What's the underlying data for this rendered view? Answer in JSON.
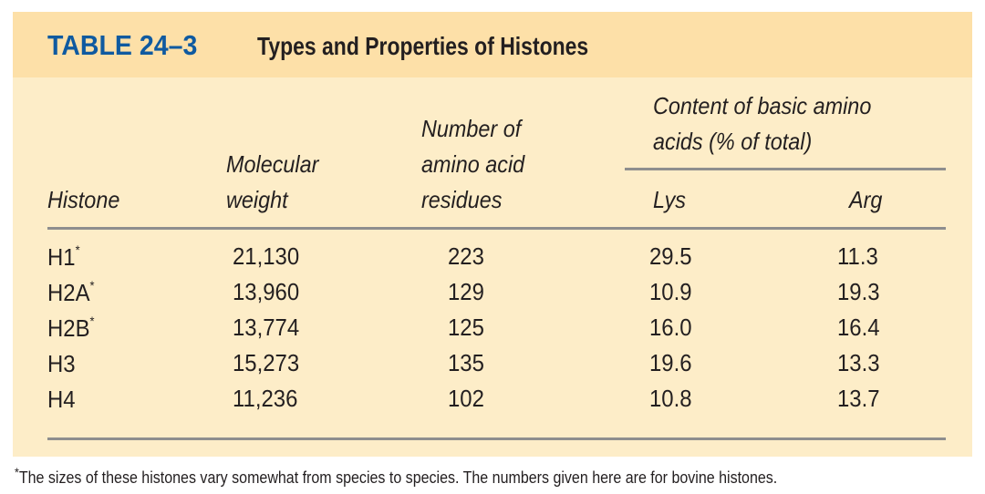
{
  "table_number": "TABLE 24–3",
  "title": "Types and Properties of Histones",
  "headers": {
    "histone": "Histone",
    "mw_1": "Molecular",
    "mw_2": "weight",
    "aa_1": "Number of",
    "aa_2": "amino acid",
    "aa_3": "residues",
    "basic_1": "Content of basic amino",
    "basic_2": "acids (% of total)",
    "lys": "Lys",
    "arg": "Arg"
  },
  "rows": [
    {
      "histone": "H1",
      "mark": "*",
      "mw": "21,130",
      "residues": "223",
      "lys": "29.5",
      "arg": "11.3"
    },
    {
      "histone": "H2A",
      "mark": "*",
      "mw": "13,960",
      "residues": "129",
      "lys": "10.9",
      "arg": "19.3"
    },
    {
      "histone": "H2B",
      "mark": "*",
      "mw": "13,774",
      "residues": "125",
      "lys": "16.0",
      "arg": "16.4"
    },
    {
      "histone": "H3",
      "mark": "",
      "mw": "15,273",
      "residues": "135",
      "lys": "19.6",
      "arg": "13.3"
    },
    {
      "histone": "H4",
      "mark": "",
      "mw": "11,236",
      "residues": "102",
      "lys": "10.8",
      "arg": "13.7"
    }
  ],
  "footnote": {
    "mark": "*",
    "text": "The sizes of these histones vary somewhat from species to species. The numbers given here are for bovine histones."
  }
}
